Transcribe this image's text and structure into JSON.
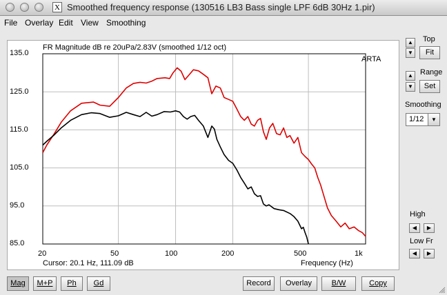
{
  "window": {
    "title": "Smoothed frequency response (130516 LB3 Bass single LPF 6dB 30Hz 1.pir)",
    "app_icon": "X"
  },
  "menu": [
    "File",
    "Overlay",
    "Edit",
    "View",
    "Smoothing"
  ],
  "chart_data": {
    "type": "line",
    "title": "FR Magnitude dB re 20uPa/2.83V (smoothed 1/12 oct)",
    "xlabel": "Frequency (Hz)",
    "x_scale": "log",
    "xlim": [
      20,
      1000
    ],
    "ylim": [
      85,
      135
    ],
    "x_ticks": [
      "20",
      "50",
      "100",
      "200",
      "500",
      "1k"
    ],
    "y_ticks": [
      "135.0",
      "125.0",
      "115.0",
      "105.0",
      "95.0",
      "85.0"
    ],
    "grid": true,
    "side_label": "ARTA",
    "series": [
      {
        "color": "#dd0000",
        "points": [
          [
            20,
            109
          ],
          [
            21,
            111
          ],
          [
            23,
            114
          ],
          [
            25,
            117
          ],
          [
            28,
            120
          ],
          [
            32,
            122
          ],
          [
            37,
            122.3
          ],
          [
            40,
            121.5
          ],
          [
            45,
            121.2
          ],
          [
            50,
            123.5
          ],
          [
            55,
            126
          ],
          [
            60,
            127.2
          ],
          [
            65,
            127.5
          ],
          [
            70,
            127.3
          ],
          [
            75,
            127.8
          ],
          [
            80,
            128.5
          ],
          [
            88,
            128.7
          ],
          [
            93,
            128.5
          ],
          [
            97,
            130
          ],
          [
            102,
            131.3
          ],
          [
            107,
            130.4
          ],
          [
            112,
            128.2
          ],
          [
            118,
            129.5
          ],
          [
            124,
            130.8
          ],
          [
            132,
            130.5
          ],
          [
            140,
            129.6
          ],
          [
            148,
            128.7
          ],
          [
            155,
            124.5
          ],
          [
            163,
            126.5
          ],
          [
            172,
            126
          ],
          [
            180,
            123.5
          ],
          [
            190,
            123
          ],
          [
            200,
            122.5
          ],
          [
            210,
            120.5
          ],
          [
            220,
            118.5
          ],
          [
            230,
            117.5
          ],
          [
            240,
            118.5
          ],
          [
            250,
            116.5
          ],
          [
            260,
            116
          ],
          [
            270,
            117.5
          ],
          [
            280,
            118
          ],
          [
            290,
            114.5
          ],
          [
            300,
            112.5
          ],
          [
            312,
            115.5
          ],
          [
            325,
            116.7
          ],
          [
            340,
            114
          ],
          [
            355,
            113.7
          ],
          [
            370,
            115.5
          ],
          [
            385,
            113
          ],
          [
            400,
            113.5
          ],
          [
            420,
            111.5
          ],
          [
            440,
            113
          ],
          [
            460,
            109
          ],
          [
            480,
            108
          ],
          [
            500,
            107.2
          ],
          [
            520,
            106
          ],
          [
            540,
            105
          ],
          [
            560,
            102.5
          ],
          [
            580,
            100.5
          ],
          [
            600,
            98
          ],
          [
            630,
            94.5
          ],
          [
            660,
            92.5
          ],
          [
            700,
            91
          ],
          [
            740,
            89.5
          ],
          [
            780,
            90.5
          ],
          [
            820,
            89
          ],
          [
            870,
            89.5
          ],
          [
            920,
            88.5
          ],
          [
            960,
            88
          ],
          [
            1000,
            87
          ]
        ]
      },
      {
        "color": "#000000",
        "points": [
          [
            20,
            111
          ],
          [
            21,
            112
          ],
          [
            23,
            113.7
          ],
          [
            25,
            115.5
          ],
          [
            28,
            117.5
          ],
          [
            32,
            119
          ],
          [
            36,
            119.5
          ],
          [
            40,
            119.3
          ],
          [
            45,
            118.3
          ],
          [
            50,
            118.7
          ],
          [
            55,
            119.6
          ],
          [
            60,
            119
          ],
          [
            65,
            118.5
          ],
          [
            70,
            119.6
          ],
          [
            75,
            118.6
          ],
          [
            80,
            119
          ],
          [
            87,
            119.8
          ],
          [
            94,
            119.7
          ],
          [
            100,
            120
          ],
          [
            105,
            119.7
          ],
          [
            110,
            118.5
          ],
          [
            115,
            117.8
          ],
          [
            120,
            118.5
          ],
          [
            126,
            118.8
          ],
          [
            132,
            117.5
          ],
          [
            140,
            116
          ],
          [
            148,
            113
          ],
          [
            155,
            116
          ],
          [
            160,
            115.2
          ],
          [
            165,
            112.5
          ],
          [
            172,
            110.5
          ],
          [
            180,
            108.5
          ],
          [
            190,
            107
          ],
          [
            200,
            106.2
          ],
          [
            210,
            104.5
          ],
          [
            220,
            102.5
          ],
          [
            230,
            101
          ],
          [
            240,
            99.5
          ],
          [
            250,
            100
          ],
          [
            260,
            98.2
          ],
          [
            270,
            97.5
          ],
          [
            280,
            97.7
          ],
          [
            290,
            95.5
          ],
          [
            300,
            95
          ],
          [
            310,
            95.3
          ],
          [
            330,
            94.3
          ],
          [
            350,
            94
          ],
          [
            370,
            93.8
          ],
          [
            400,
            93
          ],
          [
            420,
            92.2
          ],
          [
            440,
            91
          ],
          [
            460,
            89
          ],
          [
            470,
            89.4
          ],
          [
            480,
            88
          ],
          [
            490,
            86.8
          ],
          [
            500,
            85
          ]
        ]
      }
    ]
  },
  "cursor_readout": "Cursor: 20.1 Hz, 111.09 dB",
  "right_panel": {
    "top_label": "Top",
    "fit_button": "Fit",
    "range_label": "Range",
    "set_button": "Set",
    "smoothing_label": "Smoothing",
    "smoothing_value": "1/12",
    "high_label": "High",
    "lowfr_label": "Low Fr"
  },
  "bottom_buttons": {
    "mag": "Mag",
    "mp": "M+P",
    "ph": "Ph",
    "gd": "Gd",
    "record": "Record",
    "overlay": "Overlay",
    "bw": "B/W",
    "copy": "Copy"
  }
}
